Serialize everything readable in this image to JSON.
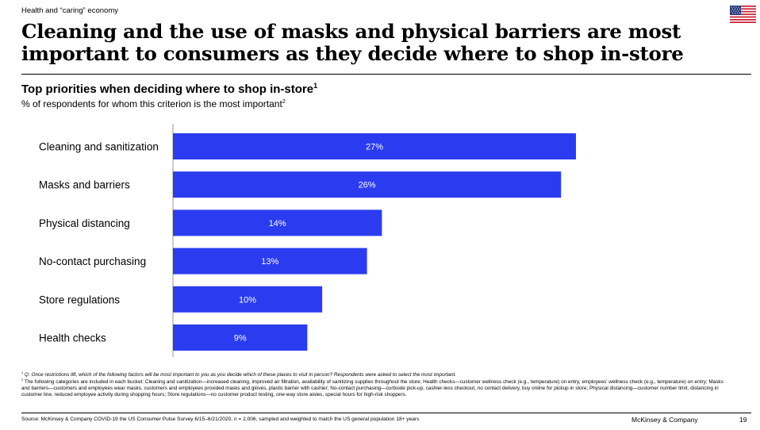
{
  "header": {
    "section_tag": "Health and “caring” economy",
    "headline": "Cleaning and the use of masks and physical barriers are most important to consumers as they decide where to shop in-store",
    "flag_icon": "us-flag-icon"
  },
  "chart_header": {
    "title": "Top priorities when deciding where to shop in-store",
    "title_sup": "1",
    "subtitle": "% of respondents for whom this criterion is the most important",
    "subtitle_sup": "2"
  },
  "chart_data": {
    "type": "bar",
    "orientation": "horizontal",
    "title": "Top priorities when deciding where to shop in-store",
    "subtitle": "% of respondents for whom this criterion is the most important",
    "categories": [
      "Cleaning and sanitization",
      "Masks and barriers",
      "Physical distancing",
      "No-contact purchasing",
      "Store regulations",
      "Health checks"
    ],
    "values": [
      27,
      26,
      14,
      13,
      10,
      9
    ],
    "data_labels": [
      "27%",
      "26%",
      "14%",
      "13%",
      "10%",
      "9%"
    ],
    "xlim": [
      0,
      27
    ],
    "grid": false,
    "bar_color": "#2b3cf0",
    "label_color": "#ffffff"
  },
  "footnotes": {
    "note1_mark": "1",
    "note1": "Q: Once restrictions lift, which of the following factors will be most important to you as you decide which of these places to visit in person? Respondents were asked to select the most important.",
    "note2_mark": "2",
    "note2": "The following categories are included in each bucket: Cleaning and sanitization—increased cleaning, improved air filtration, availability of sanitizing supplies throughout the store; Health checks—customer wellness check (e.g., temperature) on entry, employees' wellness check (e.g., temperature) on entry; Masks and barriers—customers and employees wear masks, customers and employees provided masks and gloves, plastic barrier with cashier; No-contact purchasing—curbside pick-up, cashier-less checkout, no contact delivery, buy online for pickup in store; Physical distancing—customer number limit, distancing in customer line, reduced employee activity during shopping hours; Store regulations—no customer product testing, one-way store aisles, special hours for high-risk shoppers."
  },
  "footer": {
    "source": "Source: McKinsey & Company COVID-19 the US Consumer Pulse Survey 6/15–6/21/2020, n = 2,006, sampled and weighted to match the US general population 18+ years",
    "brand": "McKinsey & Company",
    "page_number": "19"
  }
}
